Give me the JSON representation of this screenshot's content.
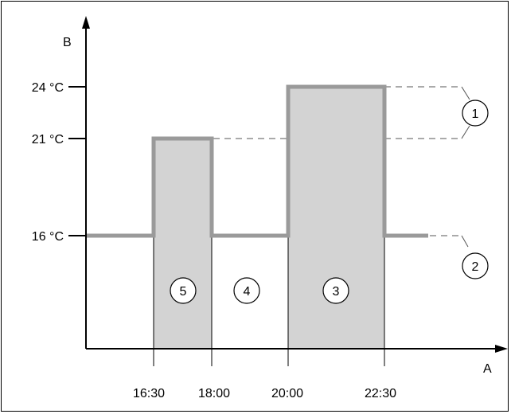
{
  "diagram": {
    "y_axis_label": "B",
    "x_axis_label": "A",
    "temperature_levels": [
      {
        "label": "24 °C",
        "value": 24
      },
      {
        "label": "21 °C",
        "value": 21
      },
      {
        "label": "16 °C",
        "value": 16
      }
    ],
    "time_ticks": [
      "16:30",
      "18:00",
      "20:00",
      "22:30"
    ],
    "callouts": [
      "1",
      "2",
      "3",
      "4",
      "5"
    ],
    "colors": {
      "profile_line": "#9a9a9a",
      "shaded_period": "#d3d3d3",
      "axis": "#000000",
      "dashed_guide": "#555555"
    }
  }
}
